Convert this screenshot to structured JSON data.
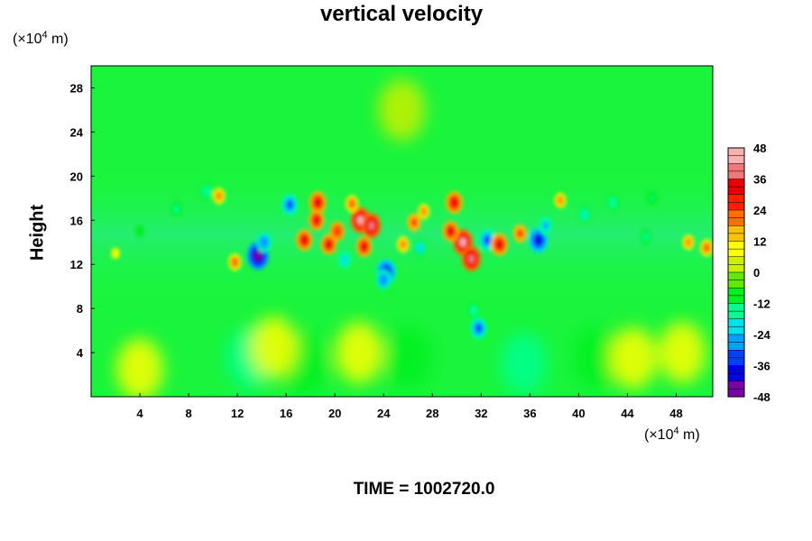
{
  "chart_data": {
    "type": "heatmap",
    "title": "vertical velocity",
    "ylabel": "Height",
    "y_unit": {
      "prefix": "(×10",
      "exponent": "4",
      "suffix": " m)"
    },
    "x_unit": {
      "prefix": "(×10",
      "exponent": "4",
      "suffix": " m)"
    },
    "xlim": [
      0,
      51
    ],
    "ylim": [
      0,
      30
    ],
    "x_ticks": [
      4,
      8,
      12,
      16,
      20,
      24,
      28,
      32,
      36,
      40,
      44,
      48
    ],
    "y_ticks": [
      4,
      8,
      12,
      16,
      20,
      24,
      28
    ],
    "colorbar": {
      "range": [
        -48,
        48
      ],
      "ticks": [
        48,
        36,
        24,
        12,
        0,
        -12,
        -24,
        -36,
        -48
      ],
      "levels": 32,
      "colors": [
        "#7a00a8",
        "#0000e0",
        "#0040ff",
        "#00a0ff",
        "#00e0e8",
        "#00ff90",
        "#00f020",
        "#60e800",
        "#c8f000",
        "#ffff00",
        "#ffc000",
        "#ff7000",
        "#ff2000",
        "#e80000",
        "#f07878",
        "#f8b0b0"
      ]
    },
    "features": [
      {
        "x": 13.7,
        "y": 12.8,
        "value": -48
      },
      {
        "x": 14.2,
        "y": 14.0,
        "value": -30
      },
      {
        "x": 16.3,
        "y": 17.4,
        "value": -34
      },
      {
        "x": 22.1,
        "y": 16.0,
        "value": 42
      },
      {
        "x": 23.0,
        "y": 15.5,
        "value": 40
      },
      {
        "x": 24.2,
        "y": 11.3,
        "value": -42
      },
      {
        "x": 24.0,
        "y": 10.6,
        "value": -30
      },
      {
        "x": 18.6,
        "y": 17.6,
        "value": 34
      },
      {
        "x": 18.5,
        "y": 16.0,
        "value": 30
      },
      {
        "x": 17.5,
        "y": 14.2,
        "value": 32
      },
      {
        "x": 19.5,
        "y": 13.8,
        "value": 30
      },
      {
        "x": 20.2,
        "y": 15.0,
        "value": 28
      },
      {
        "x": 21.4,
        "y": 17.5,
        "value": 22
      },
      {
        "x": 22.4,
        "y": 13.6,
        "value": 30
      },
      {
        "x": 26.5,
        "y": 15.8,
        "value": 24
      },
      {
        "x": 25.6,
        "y": 13.8,
        "value": 20
      },
      {
        "x": 29.8,
        "y": 17.6,
        "value": 34
      },
      {
        "x": 30.5,
        "y": 14.0,
        "value": 42
      },
      {
        "x": 31.2,
        "y": 12.5,
        "value": 40
      },
      {
        "x": 29.5,
        "y": 15.0,
        "value": 30
      },
      {
        "x": 32.5,
        "y": 14.2,
        "value": -34
      },
      {
        "x": 33.5,
        "y": 13.8,
        "value": 34
      },
      {
        "x": 36.7,
        "y": 14.2,
        "value": -42
      },
      {
        "x": 37.3,
        "y": 15.5,
        "value": -26
      },
      {
        "x": 35.2,
        "y": 14.8,
        "value": 24
      },
      {
        "x": 27.3,
        "y": 16.8,
        "value": 18
      },
      {
        "x": 31.8,
        "y": 6.2,
        "value": -34
      },
      {
        "x": 31.4,
        "y": 7.8,
        "value": -18
      },
      {
        "x": 11.8,
        "y": 12.2,
        "value": 22
      },
      {
        "x": 10.5,
        "y": 18.2,
        "value": 20
      },
      {
        "x": 9.5,
        "y": 18.6,
        "value": -18
      },
      {
        "x": 7.0,
        "y": 17.0,
        "value": -16
      },
      {
        "x": 20.8,
        "y": 12.4,
        "value": -24
      },
      {
        "x": 27.0,
        "y": 13.5,
        "value": -22
      },
      {
        "x": 38.5,
        "y": 17.8,
        "value": 18
      },
      {
        "x": 40.5,
        "y": 16.5,
        "value": -20
      },
      {
        "x": 42.8,
        "y": 17.6,
        "value": -18
      },
      {
        "x": 45.5,
        "y": 14.5,
        "value": -16
      },
      {
        "x": 49.0,
        "y": 14.0,
        "value": 18
      },
      {
        "x": 50.5,
        "y": 13.5,
        "value": 22
      },
      {
        "x": 46.0,
        "y": 18.0,
        "value": -14
      },
      {
        "x": 4.0,
        "y": 15.0,
        "value": -12
      },
      {
        "x": 2.0,
        "y": 13.0,
        "value": 10
      }
    ],
    "background": [
      {
        "x": 13.0,
        "y": 3.5,
        "value": -14
      },
      {
        "x": 17.5,
        "y": 3.0,
        "value": -12
      },
      {
        "x": 26.0,
        "y": 3.5,
        "value": -12
      },
      {
        "x": 35.5,
        "y": 3.0,
        "value": -14
      },
      {
        "x": 41.5,
        "y": 3.5,
        "value": -12
      },
      {
        "x": 4.0,
        "y": 2.5,
        "value": 8
      },
      {
        "x": 15.0,
        "y": 4.5,
        "value": 8
      },
      {
        "x": 22.0,
        "y": 4.0,
        "value": 10
      },
      {
        "x": 44.5,
        "y": 3.5,
        "value": 8
      },
      {
        "x": 48.5,
        "y": 4.0,
        "value": 6
      },
      {
        "x": 25.5,
        "y": 26.0,
        "value": 4
      }
    ]
  },
  "footer": {
    "time_label": "TIME = 1002720.0"
  }
}
